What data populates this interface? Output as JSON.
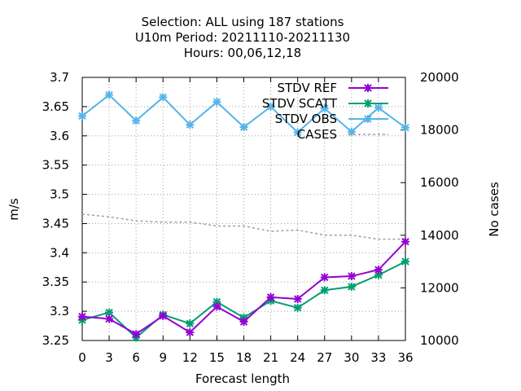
{
  "chart_data": {
    "type": "line",
    "title_lines": [
      "Selection: ALL using   187 stations",
      "U10m   Period: 20211110-20211130",
      "Hours:  00,06,12,18"
    ],
    "xlabel": "Forecast length",
    "ylabel": "m/s",
    "y2label": "No cases",
    "x": [
      0,
      3,
      6,
      9,
      12,
      15,
      18,
      21,
      24,
      27,
      30,
      33,
      36
    ],
    "xlim": [
      0,
      36
    ],
    "ylim": [
      3.25,
      3.7
    ],
    "y2lim": [
      10000,
      20000
    ],
    "yticks": [
      "3.25",
      "3.3",
      "3.35",
      "3.4",
      "3.45",
      "3.5",
      "3.55",
      "3.6",
      "3.65",
      "3.7"
    ],
    "y2ticks": [
      "10000",
      "12000",
      "14000",
      "16000",
      "18000",
      "20000"
    ],
    "xticks": [
      "0",
      "3",
      "6",
      "9",
      "12",
      "15",
      "18",
      "21",
      "24",
      "27",
      "30",
      "33",
      "36"
    ],
    "grid": true,
    "legend_position": "top-right",
    "series": [
      {
        "name": "STDV REF",
        "axis": "y",
        "color": "#9400d3",
        "style": "solid",
        "values": [
          3.291,
          3.287,
          3.261,
          3.292,
          3.264,
          3.308,
          3.282,
          3.324,
          3.321,
          3.358,
          3.36,
          3.371,
          3.419
        ]
      },
      {
        "name": "STDV SCATT",
        "axis": "y",
        "color": "#009e73",
        "style": "solid",
        "values": [
          3.285,
          3.298,
          3.255,
          3.294,
          3.279,
          3.316,
          3.289,
          3.318,
          3.306,
          3.336,
          3.342,
          3.362,
          3.385
        ]
      },
      {
        "name": "STDV OBS",
        "axis": "y",
        "color": "#56b4e9",
        "style": "solid",
        "values": [
          3.634,
          3.67,
          3.626,
          3.666,
          3.619,
          3.658,
          3.615,
          3.65,
          3.606,
          3.647,
          3.607,
          3.648,
          3.614
        ]
      },
      {
        "name": "CASES",
        "axis": "y2",
        "color": "#a0a0a0",
        "style": "dashed",
        "values": [
          14800,
          14700,
          14550,
          14500,
          14500,
          14350,
          14350,
          14150,
          14200,
          14000,
          14000,
          13850,
          13850
        ]
      }
    ]
  }
}
